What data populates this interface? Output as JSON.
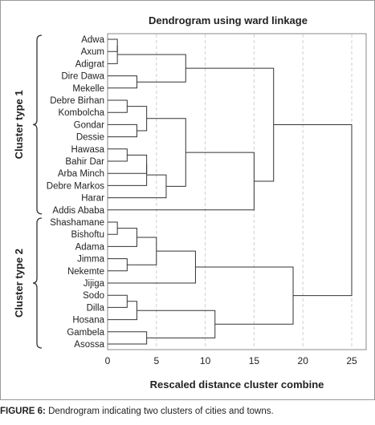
{
  "caption": {
    "label": "FIGURE 6:",
    "text": " Dendrogram indicating two clusters of cities and towns."
  },
  "chart_data": {
    "type": "dendrogram",
    "title": "Dendrogram using ward linkage",
    "xlabel": "Rescaled distance cluster combine",
    "xlim": [
      0,
      25
    ],
    "xticks": [
      0,
      5,
      10,
      15,
      20,
      25
    ],
    "grid": "vertical dashed",
    "leaves": [
      "Adwa",
      "Axum",
      "Adigrat",
      "Dire Dawa",
      "Mekelle",
      "Debre Birhan",
      "Kombolcha",
      "Gondar",
      "Dessie",
      "Hawasa",
      "Bahir Dar",
      "Arba Minch",
      "Debre Markos",
      "Harar",
      "Addis Ababa",
      "Shashamane",
      "Bishoftu",
      "Adama",
      "Jimma",
      "Nekemte",
      "Jijiga",
      "Sodo",
      "Dilla",
      "Hosana",
      "Gambela",
      "Asossa"
    ],
    "groups": [
      {
        "label": "Cluster type 1",
        "from": 0,
        "to": 14
      },
      {
        "label": "Cluster type 2",
        "from": 15,
        "to": 25
      }
    ],
    "merges": [
      {
        "id": "c1",
        "children": [
          "Adwa",
          "Axum"
        ],
        "distance": 1
      },
      {
        "id": "c2",
        "children": [
          "c1",
          "Adigrat"
        ],
        "distance": 1
      },
      {
        "id": "c3",
        "children": [
          "Dire Dawa",
          "Mekelle"
        ],
        "distance": 3
      },
      {
        "id": "c4",
        "children": [
          "c2",
          "c3"
        ],
        "distance": 8
      },
      {
        "id": "c5",
        "children": [
          "Debre Birhan",
          "Kombolcha"
        ],
        "distance": 2
      },
      {
        "id": "c6",
        "children": [
          "Gondar",
          "Dessie"
        ],
        "distance": 3
      },
      {
        "id": "c7",
        "children": [
          "c5",
          "c6"
        ],
        "distance": 4
      },
      {
        "id": "c8",
        "children": [
          "Hawasa",
          "Bahir Dar"
        ],
        "distance": 2
      },
      {
        "id": "c9",
        "children": [
          "c8",
          "Arba Minch"
        ],
        "distance": 4
      },
      {
        "id": "c10",
        "children": [
          "c9",
          "Debre Markos"
        ],
        "distance": 4
      },
      {
        "id": "c11",
        "children": [
          "c10",
          "Harar"
        ],
        "distance": 6
      },
      {
        "id": "c12",
        "children": [
          "c7",
          "c11"
        ],
        "distance": 8
      },
      {
        "id": "c13",
        "children": [
          "c12",
          "Addis Ababa"
        ],
        "distance": 15
      },
      {
        "id": "c14",
        "children": [
          "c4",
          "c13"
        ],
        "distance": 17
      },
      {
        "id": "c15",
        "children": [
          "Shashamane",
          "Bishoftu"
        ],
        "distance": 1
      },
      {
        "id": "c16",
        "children": [
          "c15",
          "Adama"
        ],
        "distance": 3
      },
      {
        "id": "c17",
        "children": [
          "Jimma",
          "Nekemte"
        ],
        "distance": 2
      },
      {
        "id": "c18",
        "children": [
          "c16",
          "c17"
        ],
        "distance": 5
      },
      {
        "id": "c19",
        "children": [
          "c18",
          "Jijiga"
        ],
        "distance": 9
      },
      {
        "id": "c20",
        "children": [
          "Sodo",
          "Dilla"
        ],
        "distance": 2
      },
      {
        "id": "c21",
        "children": [
          "c20",
          "Hosana"
        ],
        "distance": 3
      },
      {
        "id": "c22",
        "children": [
          "Gambela",
          "Asossa"
        ],
        "distance": 4
      },
      {
        "id": "c23",
        "children": [
          "c21",
          "c22"
        ],
        "distance": 11
      },
      {
        "id": "c24",
        "children": [
          "c19",
          "c23"
        ],
        "distance": 19
      },
      {
        "id": "c25",
        "children": [
          "c14",
          "c24"
        ],
        "distance": 25
      }
    ]
  }
}
